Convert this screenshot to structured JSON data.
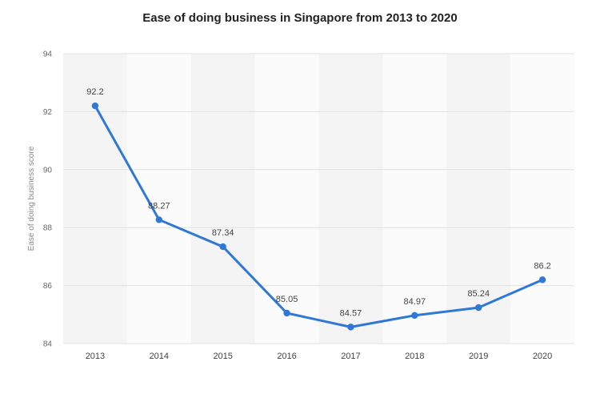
{
  "chart_data": {
    "type": "line",
    "title": "Ease of doing business in Singapore from 2013 to 2020",
    "xlabel": "",
    "ylabel": "Ease of doing business score",
    "categories": [
      "2013",
      "2014",
      "2015",
      "2016",
      "2017",
      "2018",
      "2019",
      "2020"
    ],
    "series": [
      {
        "values": [
          92.2,
          88.27,
          87.34,
          85.05,
          84.57,
          84.97,
          85.24,
          86.2
        ],
        "labels": [
          "92.2",
          "88.27",
          "87.34",
          "85.05",
          "84.57",
          "84.97",
          "85.24",
          "86.2"
        ],
        "color": "#2f78d6"
      }
    ],
    "ylim": [
      84,
      94
    ],
    "yticks": [
      84,
      86,
      88,
      90,
      92,
      94
    ],
    "grid": true,
    "legend": "none",
    "band_colors": [
      "#f4f4f4",
      "#fbfbfb"
    ]
  }
}
